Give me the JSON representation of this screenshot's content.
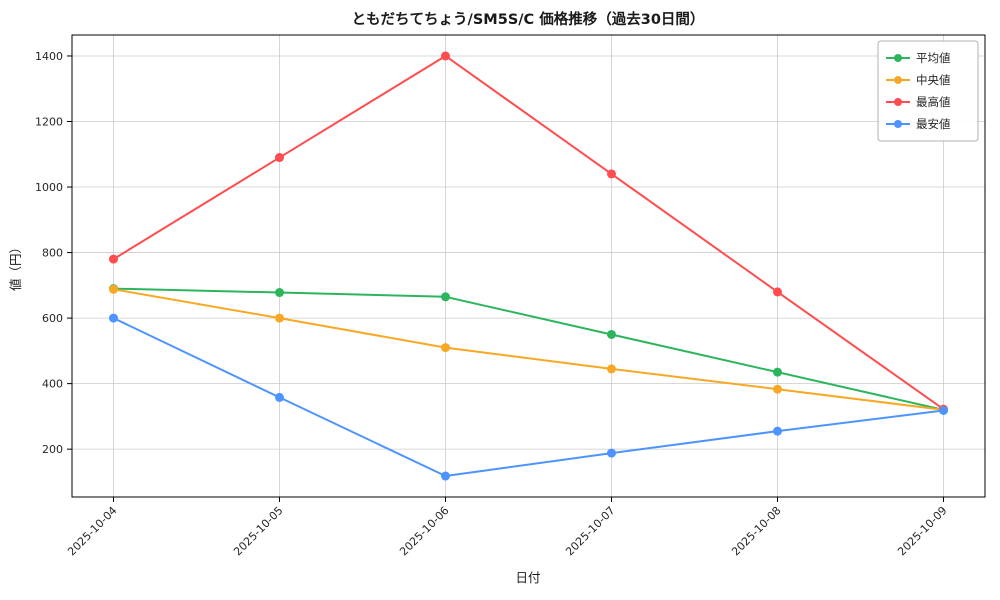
{
  "chart_data": {
    "type": "line",
    "title": "ともだちてちょう/SM5S/C 価格推移（過去30日間）",
    "xlabel": "日付",
    "ylabel": "値（円）",
    "categories": [
      "2025-10-04",
      "2025-10-05",
      "2025-10-06",
      "2025-10-07",
      "2025-10-08",
      "2025-10-09"
    ],
    "series": [
      {
        "name": "平均値",
        "color": "#2db55d",
        "values": [
          690,
          678,
          665,
          550,
          435,
          320
        ]
      },
      {
        "name": "中央値",
        "color": "#f9a825",
        "values": [
          688,
          600,
          510,
          445,
          383,
          320
        ]
      },
      {
        "name": "最高値",
        "color": "#ff4d4f",
        "values": [
          780,
          1090,
          1400,
          1040,
          680,
          322
        ]
      },
      {
        "name": "最安値",
        "color": "#4d94ff",
        "values": [
          600,
          358,
          118,
          188,
          255,
          318
        ]
      }
    ],
    "ylim": [
      54,
      1464
    ],
    "yticks": [
      200,
      400,
      600,
      800,
      1000,
      1200,
      1400
    ],
    "grid": true,
    "legend_position": "top-right",
    "axis_color": "#000000",
    "grid_color": "#cccccc",
    "background": "#ffffff"
  }
}
